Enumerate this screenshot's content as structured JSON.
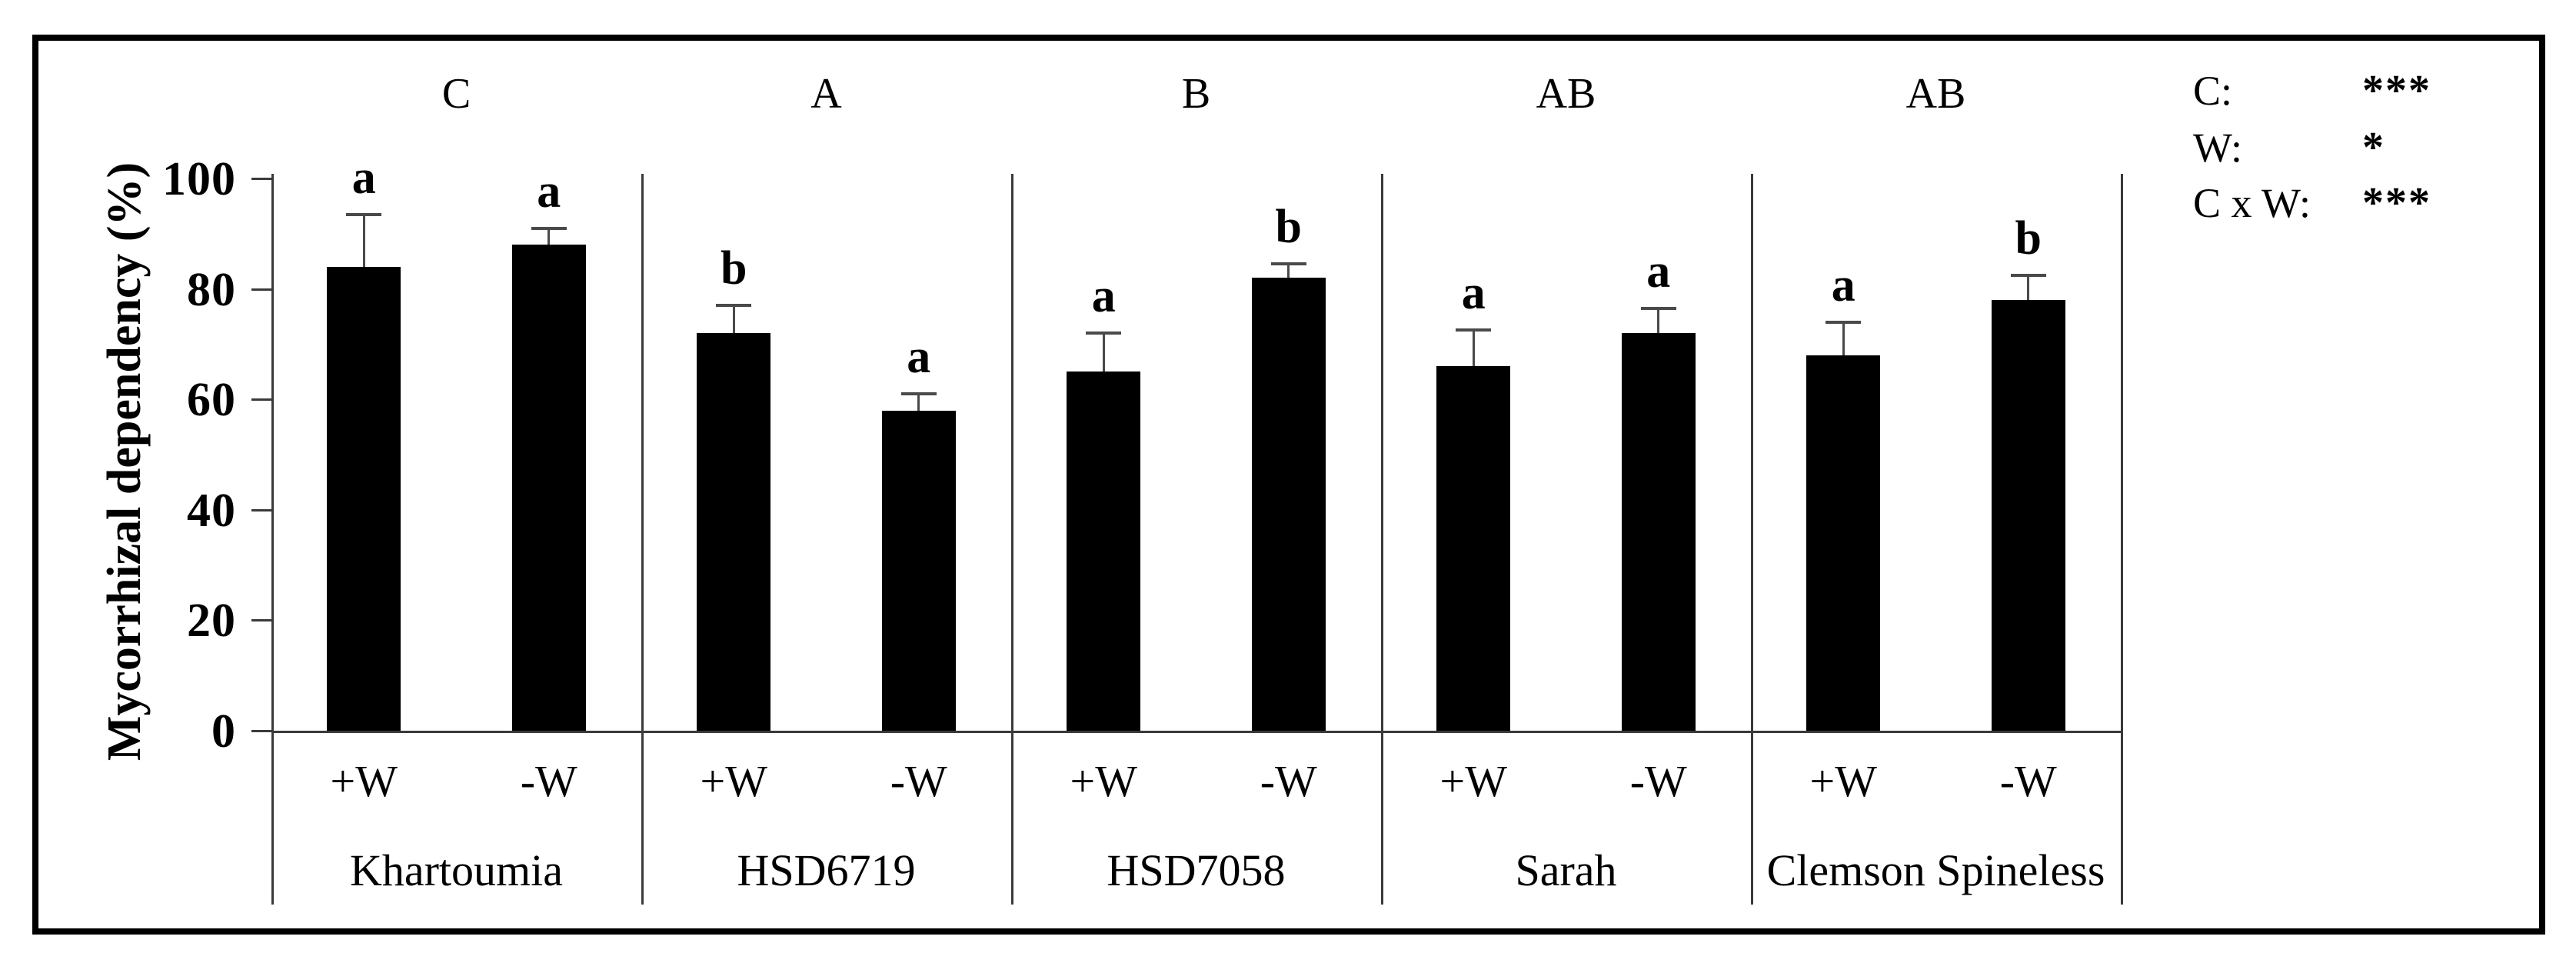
{
  "chart_data": {
    "type": "bar",
    "title": "",
    "ylabel": "Mycorrhizal dependency (%)",
    "xlabel": "",
    "ylim": [
      0,
      100
    ],
    "yticks": [
      0,
      20,
      40,
      60,
      80,
      100
    ],
    "grid": false,
    "bar_color": "#000000",
    "categories": [
      "Khartoumia",
      "HSD6719",
      "HSD7058",
      "Sarah",
      "Clemson Spineless"
    ],
    "group_significance_letters": [
      "C",
      "A",
      "B",
      "AB",
      "AB"
    ],
    "treatments": [
      "+W",
      "-W"
    ],
    "series": [
      {
        "name": "+W",
        "values": [
          84,
          72,
          65,
          66,
          68
        ],
        "error_tops": [
          93.5,
          77,
          72,
          72.5,
          74
        ],
        "sig_letters": [
          "a",
          "b",
          "a",
          "a",
          "a"
        ]
      },
      {
        "name": "-W",
        "values": [
          88,
          58,
          82,
          72,
          78
        ],
        "error_tops": [
          91,
          61,
          84.5,
          76.5,
          82.5
        ],
        "sig_letters": [
          "a",
          "a",
          "b",
          "a",
          "b"
        ]
      }
    ],
    "anova_legend": [
      {
        "factor": "C:",
        "significance": "***"
      },
      {
        "factor": "W:",
        "significance": "*"
      },
      {
        "factor": "C x W:",
        "significance": "***"
      }
    ],
    "legend_position": "top-right"
  }
}
